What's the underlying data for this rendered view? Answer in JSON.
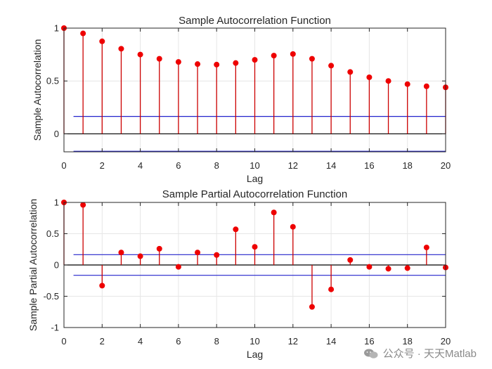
{
  "chart_data": [
    {
      "type": "stem",
      "title": "Sample Autocorrelation Function",
      "xlabel": "Lag",
      "ylabel": "Sample Autocorrelation",
      "xlim": [
        0,
        20
      ],
      "ylim": [
        -0.17,
        1
      ],
      "grid": true,
      "x": [
        0,
        1,
        2,
        3,
        4,
        5,
        6,
        7,
        8,
        9,
        10,
        11,
        12,
        13,
        14,
        15,
        16,
        17,
        18,
        19,
        20
      ],
      "values": [
        1.0,
        0.95,
        0.875,
        0.805,
        0.75,
        0.71,
        0.68,
        0.66,
        0.655,
        0.67,
        0.7,
        0.74,
        0.755,
        0.71,
        0.645,
        0.585,
        0.535,
        0.5,
        0.47,
        0.45,
        0.44
      ],
      "confidence_bounds": [
        0.165,
        -0.165
      ],
      "xticks": [
        0,
        2,
        4,
        6,
        8,
        10,
        12,
        14,
        16,
        18,
        20
      ],
      "yticks": [
        0,
        0.5,
        1
      ],
      "ytick_labels": [
        "0",
        "0.5",
        "1"
      ],
      "colors": {
        "stem": "#cc0000",
        "marker": "#ee0000",
        "bounds": "#2323cc",
        "zero": "#000000"
      }
    },
    {
      "type": "stem",
      "title": "Sample Partial Autocorrelation Function",
      "xlabel": "Lag",
      "ylabel": "Sample Partial Autocorrelation",
      "xlim": [
        0,
        20
      ],
      "ylim": [
        -1,
        1
      ],
      "grid": true,
      "x": [
        0,
        1,
        2,
        3,
        4,
        5,
        6,
        7,
        8,
        9,
        10,
        11,
        12,
        13,
        14,
        15,
        16,
        17,
        18,
        19,
        20
      ],
      "values": [
        1.0,
        0.96,
        -0.33,
        0.2,
        0.14,
        0.26,
        -0.03,
        0.2,
        0.16,
        0.57,
        0.29,
        0.84,
        0.61,
        -0.67,
        -0.39,
        0.08,
        -0.03,
        -0.06,
        -0.05,
        0.28,
        -0.04
      ],
      "confidence_bounds": [
        0.165,
        -0.165
      ],
      "xticks": [
        0,
        2,
        4,
        6,
        8,
        10,
        12,
        14,
        16,
        18,
        20
      ],
      "yticks": [
        -1,
        -0.5,
        0,
        0.5,
        1
      ],
      "ytick_labels": [
        "-1",
        "-0.5",
        "0",
        "0.5",
        "1"
      ],
      "colors": {
        "stem": "#cc0000",
        "marker": "#ee0000",
        "bounds": "#2323cc",
        "zero": "#000000"
      }
    }
  ],
  "watermark": {
    "text": "公众号 · 天天Matlab",
    "icon": "wechat-icon"
  }
}
